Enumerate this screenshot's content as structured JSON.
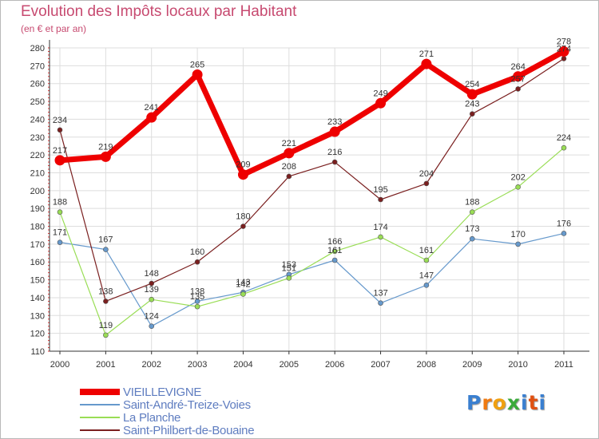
{
  "chart_data": {
    "type": "line",
    "title": "Evolution des Impôts locaux par Habitant",
    "subtitle": "(en € et par an)",
    "xlabel": "",
    "ylabel": "",
    "categories": [
      "2000",
      "2001",
      "2002",
      "2003",
      "2004",
      "2005",
      "2006",
      "2007",
      "2008",
      "2009",
      "2010",
      "2011"
    ],
    "ylim": [
      110,
      280
    ],
    "yticks": [
      110,
      120,
      130,
      140,
      150,
      160,
      170,
      180,
      190,
      200,
      210,
      220,
      230,
      240,
      250,
      260,
      270,
      280
    ],
    "grid": true,
    "legend_position": "bottom-left",
    "series": [
      {
        "name": "VIEILLEVIGNE",
        "color": "#ee0000",
        "emphasis": true,
        "values": [
          217,
          219,
          241,
          265,
          209,
          221,
          233,
          249,
          271,
          254,
          264,
          278
        ]
      },
      {
        "name": "Saint-André-Treize-Voies",
        "color": "#6699cc",
        "emphasis": false,
        "values": [
          171,
          167,
          124,
          138,
          143,
          153,
          161,
          137,
          147,
          173,
          170,
          176
        ]
      },
      {
        "name": "La Planche",
        "color": "#99dd55",
        "emphasis": false,
        "values": [
          188,
          119,
          139,
          135,
          142,
          151,
          166,
          174,
          161,
          188,
          202,
          224
        ]
      },
      {
        "name": "Saint-Philbert-de-Bouaine",
        "color": "#7a1f1f",
        "emphasis": false,
        "values": [
          234,
          138,
          148,
          160,
          180,
          208,
          216,
          195,
          204,
          243,
          257,
          274
        ]
      }
    ]
  },
  "logo": {
    "text": "Proxiti",
    "letter_colors": [
      "#3a7fd0",
      "#f07a10",
      "#f0a010",
      "#3aaa3a",
      "#3a7fd0",
      "#e05010",
      "#3a7fd0"
    ]
  }
}
